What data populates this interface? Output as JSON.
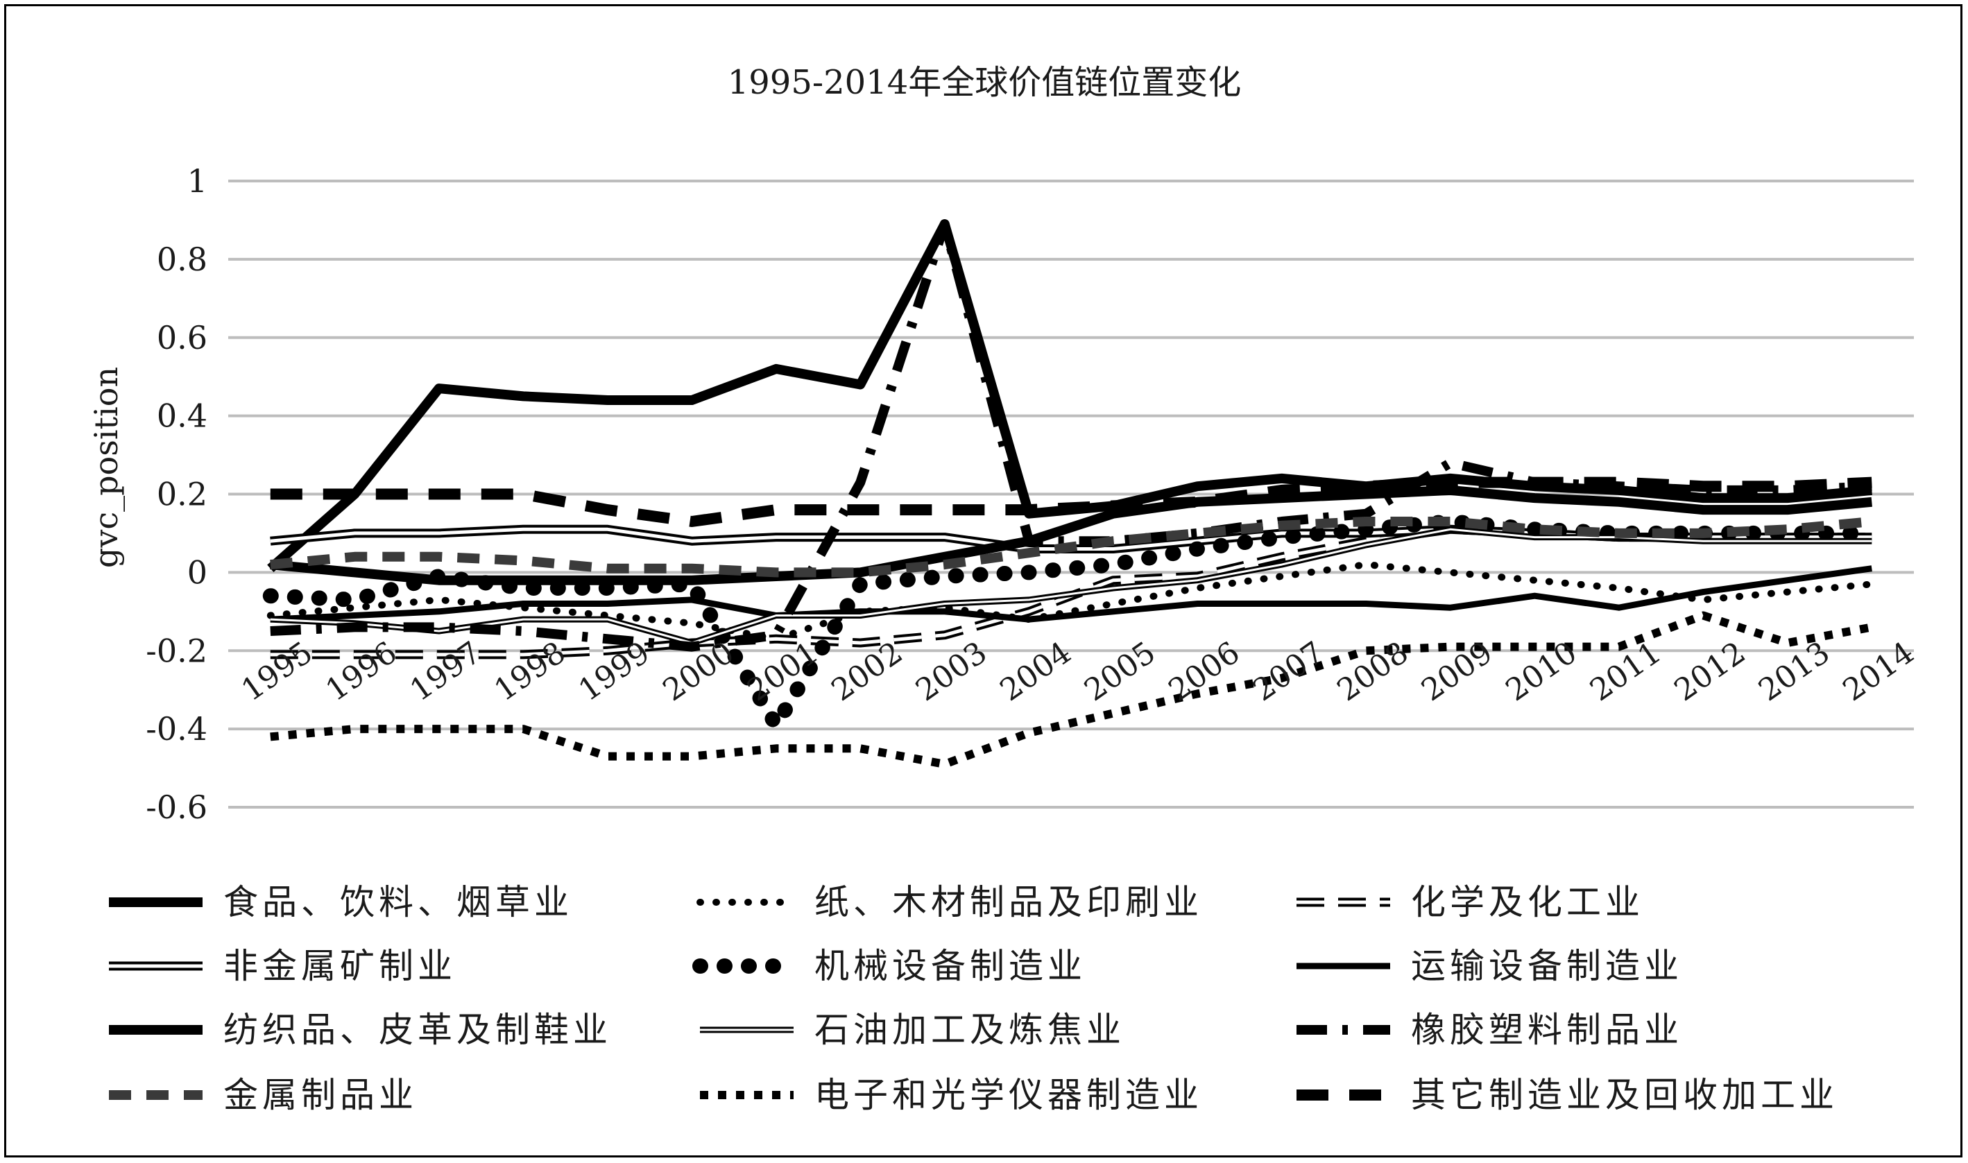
{
  "chart_data": {
    "type": "line",
    "title": "1995-2014年全球价值链位置变化",
    "xlabel": "",
    "ylabel": "gvc_position",
    "ylim": [
      -0.6,
      1
    ],
    "yticks": [
      "1",
      "0.8",
      "0.6",
      "0.4",
      "0.2",
      "0",
      "-0.2",
      "-0.4",
      "-0.6"
    ],
    "grid": true,
    "legend_position": "bottom",
    "categories": [
      "1995",
      "1996",
      "1997",
      "1998",
      "1999",
      "2000",
      "2001",
      "2002",
      "2003",
      "2004",
      "2005",
      "2006",
      "2007",
      "2008",
      "2009",
      "2010",
      "2011",
      "2012",
      "2013",
      "2014"
    ],
    "series": [
      {
        "name": "食品、饮料、烟草业",
        "style": "solid-thick",
        "color": "#000000",
        "values": [
          0.01,
          0.2,
          0.47,
          0.45,
          0.44,
          0.44,
          0.52,
          0.48,
          0.89,
          0.15,
          0.17,
          0.22,
          0.24,
          0.22,
          0.24,
          0.22,
          0.21,
          0.19,
          0.19,
          0.21
        ]
      },
      {
        "name": "纸、木材制品及印刷业",
        "style": "dotted",
        "color": "#000000",
        "values": [
          -0.11,
          -0.09,
          -0.07,
          -0.09,
          -0.11,
          -0.13,
          -0.17,
          -0.1,
          -0.09,
          -0.12,
          -0.08,
          -0.04,
          -0.01,
          0.02,
          0.0,
          -0.02,
          -0.04,
          -0.07,
          -0.05,
          -0.03
        ]
      },
      {
        "name": "化学及化工业",
        "style": "hollow-dash",
        "color": "#000000",
        "values": [
          -0.21,
          -0.21,
          -0.21,
          -0.21,
          -0.2,
          -0.18,
          -0.17,
          -0.18,
          -0.16,
          -0.1,
          -0.02,
          -0.01,
          0.04,
          0.08,
          0.11,
          0.1,
          0.09,
          0.09,
          0.09,
          0.09
        ]
      },
      {
        "name": "非金属矿制业",
        "style": "hollow",
        "color": "#000000",
        "values": [
          0.08,
          0.1,
          0.1,
          0.11,
          0.11,
          0.08,
          0.09,
          0.09,
          0.09,
          0.06,
          0.06,
          0.08,
          0.1,
          0.1,
          0.11,
          0.1,
          0.09,
          0.09,
          0.09,
          0.09
        ]
      },
      {
        "name": "机械设备制造业",
        "style": "dotted-heavy",
        "color": "#000000",
        "values": [
          -0.06,
          -0.07,
          -0.01,
          -0.04,
          -0.04,
          -0.03,
          -0.39,
          -0.03,
          -0.01,
          0.0,
          0.02,
          0.06,
          0.09,
          0.11,
          0.13,
          0.11,
          0.1,
          0.1,
          0.1,
          0.1
        ]
      },
      {
        "name": "运输设备制造业",
        "style": "solid",
        "color": "#000000",
        "values": [
          -0.12,
          -0.11,
          -0.1,
          -0.08,
          -0.08,
          -0.07,
          -0.11,
          -0.1,
          -0.1,
          -0.12,
          -0.1,
          -0.08,
          -0.08,
          -0.08,
          -0.09,
          -0.06,
          -0.09,
          -0.05,
          -0.02,
          0.01
        ]
      },
      {
        "name": "纺织品、皮革及制鞋业",
        "style": "solid-thick",
        "color": "#000000",
        "values": [
          0.02,
          0.0,
          -0.02,
          -0.02,
          -0.02,
          -0.02,
          -0.01,
          0.0,
          0.04,
          0.08,
          0.15,
          0.18,
          0.19,
          0.2,
          0.21,
          0.19,
          0.18,
          0.16,
          0.16,
          0.18
        ]
      },
      {
        "name": "石油加工及炼焦业",
        "style": "hollow-thin",
        "color": "#000000",
        "values": [
          -0.12,
          -0.13,
          -0.15,
          -0.12,
          -0.12,
          -0.18,
          -0.11,
          -0.11,
          -0.08,
          -0.07,
          -0.04,
          -0.02,
          0.02,
          0.07,
          0.11,
          0.09,
          0.09,
          0.08,
          0.08,
          0.08
        ]
      },
      {
        "name": "橡胶塑料制品业",
        "style": "dash-dot",
        "color": "#000000",
        "values": [
          -0.15,
          -0.14,
          -0.14,
          -0.15,
          -0.17,
          -0.19,
          -0.16,
          0.23,
          0.89,
          0.08,
          0.08,
          0.1,
          0.13,
          0.15,
          0.28,
          0.23,
          0.22,
          0.21,
          0.21,
          0.22
        ]
      },
      {
        "name": "金属制品业",
        "style": "dashed-gray",
        "color": "#3a3a3a",
        "values": [
          0.02,
          0.04,
          0.04,
          0.03,
          0.01,
          0.01,
          0.0,
          0.0,
          0.02,
          0.05,
          0.08,
          0.1,
          0.12,
          0.13,
          0.13,
          0.11,
          0.1,
          0.1,
          0.11,
          0.13
        ]
      },
      {
        "name": "电子和光学仪器制造业",
        "style": "dotted-square",
        "color": "#000000",
        "values": [
          -0.42,
          -0.4,
          -0.4,
          -0.4,
          -0.47,
          -0.47,
          -0.45,
          -0.45,
          -0.49,
          -0.41,
          -0.36,
          -0.31,
          -0.27,
          -0.2,
          -0.19,
          -0.19,
          -0.19,
          -0.11,
          -0.18,
          -0.14
        ]
      },
      {
        "name": "其它制造业及回收加工业",
        "style": "dashed-heavy",
        "color": "#000000",
        "values": [
          0.2,
          0.2,
          0.2,
          0.2,
          0.16,
          0.13,
          0.16,
          0.16,
          0.16,
          0.16,
          0.17,
          0.18,
          0.21,
          0.22,
          0.23,
          0.23,
          0.23,
          0.22,
          0.22,
          0.23
        ]
      }
    ]
  }
}
